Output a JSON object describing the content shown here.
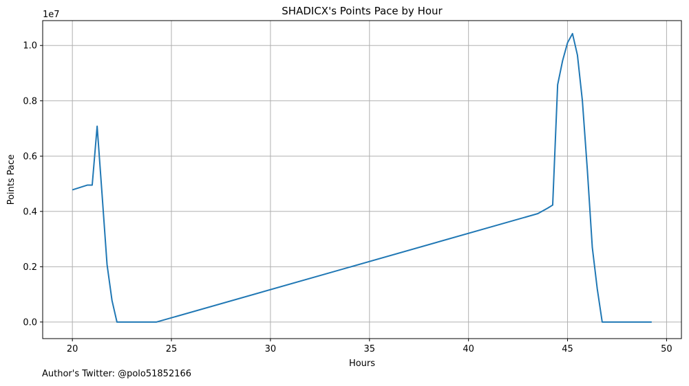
{
  "chart_data": {
    "type": "line",
    "title": "SHADICX's Points Pace by Hour",
    "xlabel": "Hours",
    "ylabel": "Points Pace",
    "y_offset_label": "1e7",
    "xlim": [
      18.5,
      50.75
    ],
    "ylim": [
      -0.06,
      1.09
    ],
    "y_scale_note": "values in units of 1e7",
    "x_ticks": [
      20,
      25,
      30,
      35,
      40,
      45,
      50
    ],
    "x_tick_labels": [
      "20",
      "25",
      "30",
      "35",
      "40",
      "45",
      "50"
    ],
    "y_ticks": [
      0.0,
      0.2,
      0.4,
      0.6,
      0.8,
      1.0
    ],
    "y_tick_labels": [
      "0.0",
      "0.2",
      "0.4",
      "0.6",
      "0.8",
      "1.0"
    ],
    "grid": true,
    "series": [
      {
        "color": "#1f77b4",
        "x": [
          20.0,
          20.75,
          21.0,
          21.25,
          21.5,
          21.75,
          22.0,
          22.25,
          24.25,
          43.5,
          44.0,
          44.25,
          44.5,
          44.75,
          45.0,
          45.25,
          45.5,
          45.75,
          46.0,
          46.25,
          46.5,
          46.75,
          49.25
        ],
        "y": [
          0.478,
          0.495,
          0.495,
          0.708,
          0.46,
          0.208,
          0.078,
          0.0,
          0.0,
          0.392,
          0.412,
          0.423,
          0.858,
          0.945,
          1.01,
          1.043,
          0.965,
          0.8,
          0.55,
          0.27,
          0.12,
          0.0,
          0.0
        ]
      }
    ]
  },
  "footnote": "Author's Twitter: @polo51852166"
}
